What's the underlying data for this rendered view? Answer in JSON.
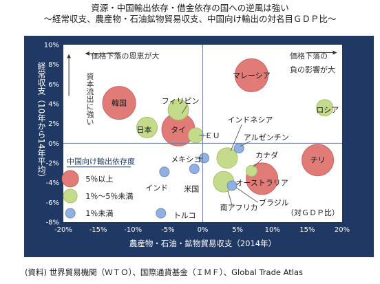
{
  "header": {
    "title": "資源・中国輸出依存・借金依存の国への逆風は強い",
    "subtitle": "〜経常収支、農産物・石油鉱物貿易収支、中国向け輸出の対名目ＧＤＰ比〜"
  },
  "source": "(資料) 世界貿易機関（ＷＴＯ）、国際通貨基金（ＩＭＦ）、Global Trade Atlas",
  "chart_data": {
    "type": "scatter",
    "xlabel": "農産物・石油・鉱物貿易収支（2014年）",
    "ylabel": "経常収支（10年から14年平均）",
    "xlim": [
      -20,
      20
    ],
    "ylim": [
      -8,
      10
    ],
    "x_ticks": [
      "-20%",
      "-15%",
      "-10%",
      "-5%",
      "0%",
      "5%",
      "10%",
      "15%",
      "20%"
    ],
    "y_ticks": [
      "10%",
      "8%",
      "6%",
      "4%",
      "2%",
      "0%",
      "-2%",
      "-4%",
      "-6%",
      "-8%"
    ],
    "grid": false,
    "legend": {
      "title": "中国向け輸出依存度",
      "placement": "left",
      "entries": [
        {
          "label": "5％以上",
          "color": "#e07b78"
        },
        {
          "label": "1％〜5％未満",
          "color": "#c5db8c"
        },
        {
          "label": "1％未満",
          "color": "#8fb0e0"
        }
      ]
    },
    "annotations": [
      {
        "text": "価格下落の恩恵が大",
        "quadrant": "top-left"
      },
      {
        "text": "資本流出に強い",
        "quadrant": "top-left"
      },
      {
        "text": "価格下落の負の影響が大",
        "quadrant": "top-right"
      },
      {
        "text": "（対ＧＤＰ比）",
        "quadrant": "bottom-right"
      }
    ],
    "series": [
      {
        "name": "5％以上",
        "color": "#e07b78",
        "points": [
          {
            "label": "韓国",
            "x": -12,
            "y": 4.1
          },
          {
            "label": "タイ",
            "x": -3.5,
            "y": 1.4
          },
          {
            "label": "マレーシア",
            "x": 7,
            "y": 6.9
          },
          {
            "label": "チリ",
            "x": 16.5,
            "y": -1.7
          },
          {
            "label": "オーストラリア",
            "x": 8.5,
            "y": -3.6
          }
        ]
      },
      {
        "name": "1％〜5％未満",
        "color": "#c5db8c",
        "points": [
          {
            "label": "フィリピン",
            "x": -3.5,
            "y": 3.4
          },
          {
            "label": "日本",
            "x": -8,
            "y": 1.6
          },
          {
            "label": "ＥＵ",
            "x": -1,
            "y": 0.8
          },
          {
            "label": "インドネシア",
            "x": 3.5,
            "y": -1.5
          },
          {
            "label": "カナダ",
            "x": 7,
            "y": -2.8
          },
          {
            "label": "南アフリカ",
            "x": 3,
            "y": -3.9
          },
          {
            "label": "ロシア",
            "x": 17.5,
            "y": 3.6
          }
        ]
      },
      {
        "name": "1％未満",
        "color": "#8fb0e0",
        "points": [
          {
            "label": "アルゼンチン",
            "x": 5.2,
            "y": -0.5
          },
          {
            "label": "メキシコ",
            "x": 0.2,
            "y": -1.5
          },
          {
            "label": "インド",
            "x": -5.5,
            "y": -2.9
          },
          {
            "label": "米国",
            "x": -1.2,
            "y": -2.6
          },
          {
            "label": "トルコ",
            "x": -6,
            "y": -7.1
          },
          {
            "label": "ブラジル",
            "x": 4.2,
            "y": -4.3
          }
        ]
      }
    ]
  }
}
